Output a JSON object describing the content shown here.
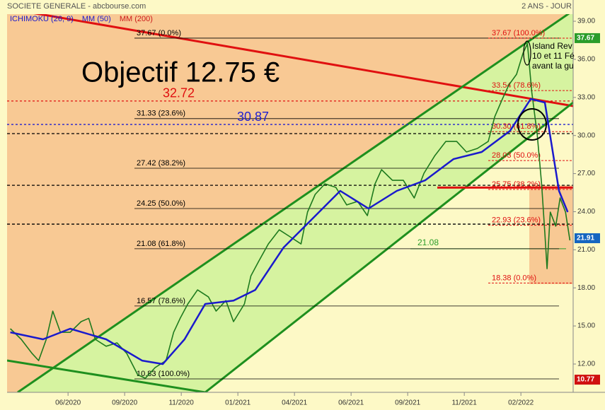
{
  "chart_data": {
    "type": "line",
    "title": "SOCIETE GENERALE - abcbourse.com",
    "period": "2 ANS - JOUR",
    "legend": [
      {
        "name": "ICHIMOKU (26, 9)",
        "color": "#1a1acc"
      },
      {
        "name": "MM (50)",
        "color": "#1a1acc"
      },
      {
        "name": "MM (200)",
        "color": "#cc1a1a"
      }
    ],
    "xlim": [
      0,
      520
    ],
    "ylim": [
      10.05,
      39.56
    ],
    "xticks": [
      {
        "value": 56,
        "label": "06/2020"
      },
      {
        "value": 108,
        "label": "09/2020"
      },
      {
        "value": 160,
        "label": "11/2020"
      },
      {
        "value": 212,
        "label": "01/2021"
      },
      {
        "value": 264,
        "label": "04/2021"
      },
      {
        "value": 316,
        "label": "06/2021"
      },
      {
        "value": 368,
        "label": "09/2021"
      },
      {
        "value": 420,
        "label": "11/2021"
      },
      {
        "value": 472,
        "label": "02/2022"
      }
    ],
    "yticks": [
      {
        "value": 12,
        "label": "12.00"
      },
      {
        "value": 15,
        "label": "15.00"
      },
      {
        "value": 18,
        "label": "18.00"
      },
      {
        "value": 21,
        "label": "21.00"
      },
      {
        "value": 24,
        "label": "24.00"
      },
      {
        "value": 27,
        "label": "27.00"
      },
      {
        "value": 30,
        "label": "30.00"
      },
      {
        "value": 33,
        "label": "33.00"
      },
      {
        "value": 36,
        "label": "36.00"
      },
      {
        "value": 39,
        "label": "39.00"
      }
    ],
    "price": {
      "color": "#1e7a1e",
      "x": [
        3,
        13,
        23,
        29,
        36,
        42,
        49,
        58,
        68,
        75,
        81,
        91,
        101,
        110,
        120,
        127,
        136,
        146,
        153,
        159,
        166,
        175,
        185,
        192,
        201,
        208,
        218,
        224,
        231,
        240,
        250,
        260,
        270,
        276,
        283,
        292,
        302,
        312,
        322,
        331,
        338,
        344,
        354,
        364,
        374,
        383,
        393,
        403,
        413,
        422,
        432,
        442,
        448,
        455,
        461,
        468,
        474,
        478,
        482,
        487,
        491,
        494,
        496,
        499,
        504,
        508,
        513,
        517
      ],
      "values": [
        14.78,
        13.95,
        12.83,
        12.27,
        13.95,
        16.17,
        14.5,
        14.5,
        15.34,
        15.6,
        13.95,
        13.4,
        13.67,
        12.83,
        11.16,
        10.88,
        11.72,
        12.27,
        14.5,
        15.6,
        16.73,
        17.84,
        17.28,
        16.17,
        17.0,
        15.34,
        16.73,
        18.95,
        20.07,
        21.46,
        22.57,
        22.02,
        21.46,
        23.97,
        25.36,
        26.19,
        25.92,
        24.53,
        24.81,
        23.69,
        26.19,
        27.31,
        26.47,
        26.47,
        25.08,
        27.03,
        28.42,
        29.53,
        29.53,
        28.7,
        28.98,
        29.53,
        31.48,
        32.88,
        33.99,
        34.82,
        36.49,
        37.22,
        33.43,
        30.09,
        26.19,
        22.3,
        19.51,
        23.97,
        22.86,
        25.08,
        23.97,
        21.74
      ]
    },
    "mm50": {
      "color": "#1a1acc",
      "x": [
        3,
        33,
        58,
        91,
        124,
        143,
        163,
        182,
        208,
        228,
        254,
        280,
        306,
        332,
        358,
        384,
        410,
        436,
        462,
        481,
        494,
        507,
        515
      ],
      "values": [
        14.5,
        13.95,
        14.78,
        13.95,
        12.27,
        12.0,
        13.95,
        16.73,
        17.0,
        17.84,
        21.18,
        23.41,
        25.64,
        24.25,
        25.64,
        26.47,
        28.14,
        28.7,
        30.37,
        32.88,
        32.6,
        25.64,
        23.97
      ]
    },
    "fib_left": [
      {
        "value": 37.67,
        "label": "37.67  (0.0%)"
      },
      {
        "value": 31.33,
        "label": "31.33  (23.6%)"
      },
      {
        "value": 27.42,
        "label": "27.42  (38.2%)"
      },
      {
        "value": 24.25,
        "label": "24.25  (50.0%)"
      },
      {
        "value": 21.08,
        "label": "21.08  (61.8%)"
      },
      {
        "value": 16.57,
        "label": "16.57  (78.6%)"
      },
      {
        "value": 10.83,
        "label": "10.83  (100.0%)"
      }
    ],
    "fib_right": [
      {
        "value": 37.67,
        "label": "37.67  (100.0%)"
      },
      {
        "value": 33.54,
        "label": "33.54  (78.6%)"
      },
      {
        "value": 30.3,
        "label": "30.30  (61.8%)"
      },
      {
        "value": 28.03,
        "label": "28.03  (50.0%)"
      },
      {
        "value": 25.75,
        "label": "25.75  (38.2%)"
      },
      {
        "value": 22.93,
        "label": "22.93  (23.6%)"
      },
      {
        "value": 18.38,
        "label": "18.38  (0.0%)"
      }
    ],
    "dashed_levels": [
      30.15,
      26.08,
      23.02
    ],
    "marked_levels": [
      {
        "value": 32.72,
        "color": "#e01010"
      },
      {
        "value": 30.87,
        "color": "#2020d0"
      }
    ],
    "support": {
      "value": 21.08,
      "color": "#2a9d2a"
    },
    "resistance": {
      "value": 25.9,
      "color": "#e01010"
    },
    "price_tags": [
      {
        "value": 37.67,
        "color": "#2a9d2a"
      },
      {
        "value": 21.91,
        "color": "#1565c0"
      },
      {
        "value": 10.77,
        "color": "#d01010"
      }
    ],
    "objective": "Objectif 12.75 €",
    "island": [
      "Island Rev",
      "10 et 11 Fé",
      "avant la gu"
    ]
  }
}
